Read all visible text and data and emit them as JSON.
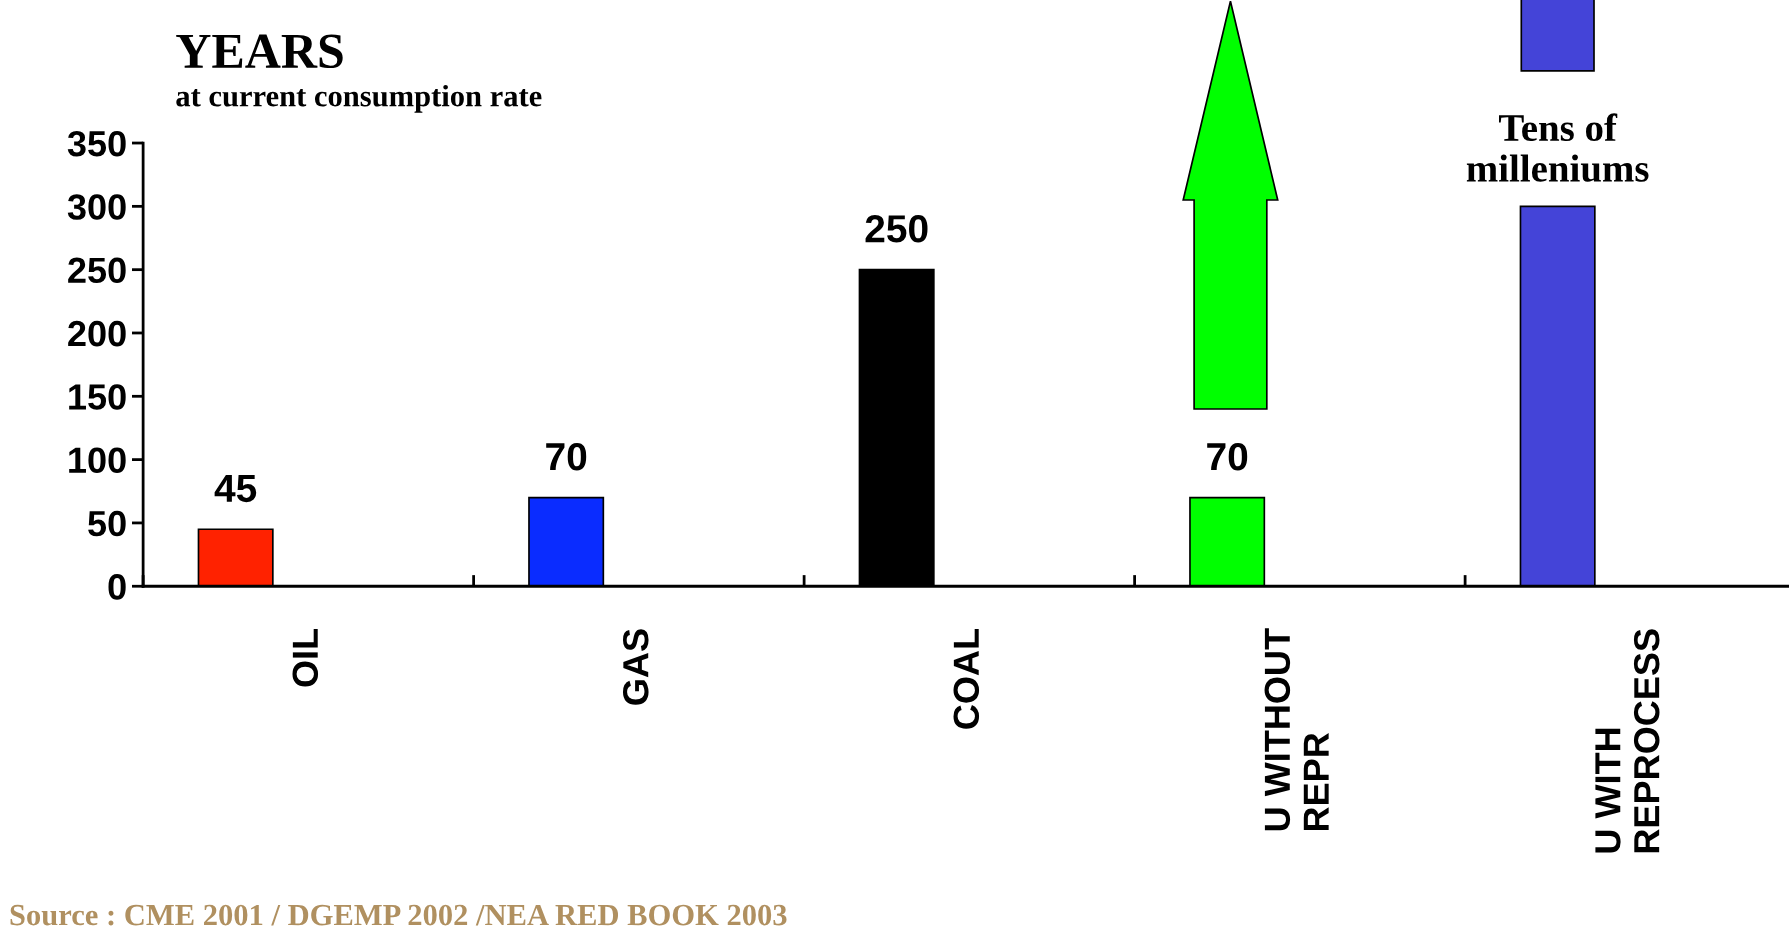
{
  "chart_data": {
    "type": "bar",
    "title": "YEARS",
    "subtitle": "at current consumption rate",
    "categories": [
      "OIL",
      "GAS",
      "COAL",
      "U WITHOUT\nREPR",
      "U WITH\nREPROCESS"
    ],
    "values": [
      45,
      70,
      250,
      70,
      300
    ],
    "colors": [
      "#ff2200",
      "#0a2cff",
      "#000000",
      "#00ff00",
      "#4444d8"
    ],
    "value_labels": [
      "45",
      "70",
      "250",
      "70",
      null
    ],
    "ylim": [
      0,
      350
    ],
    "yticks": [
      0,
      50,
      100,
      150,
      200,
      250,
      300,
      350
    ],
    "grid": false,
    "legend": false,
    "annotations": [
      "Tens of\nmilleniums",
      "Source : CME 2001 / DGEMP 2002 /NEA RED BOOK 2003"
    ]
  }
}
